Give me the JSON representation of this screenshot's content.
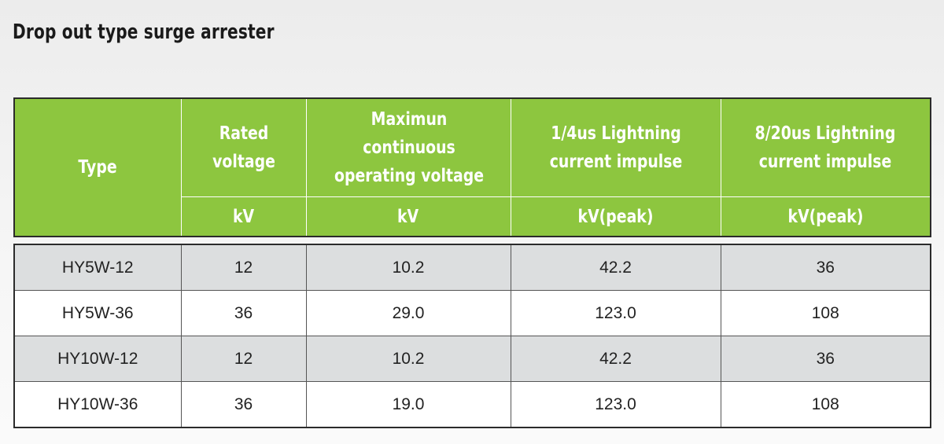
{
  "title": "Drop out type surge arrester",
  "table": {
    "headers": [
      {
        "label": "Type",
        "unit": ""
      },
      {
        "label": "Rated voltage",
        "unit": "kV"
      },
      {
        "label": "Maximun continuous operating voltage",
        "unit": "kV"
      },
      {
        "label": "1/4us Lightning current impulse",
        "unit": "kV(peak)"
      },
      {
        "label": "8/20us Lightning current impulse",
        "unit": "kV(peak)"
      }
    ],
    "rows": [
      [
        "HY5W-12",
        "12",
        "10.2",
        "42.2",
        "36"
      ],
      [
        "HY5W-36",
        "36",
        "29.0",
        "123.0",
        "108"
      ],
      [
        "HY10W-12",
        "12",
        "10.2",
        "42.2",
        "36"
      ],
      [
        "HY10W-36",
        "36",
        "19.0",
        "123.0",
        "108"
      ]
    ]
  },
  "colors": {
    "header_green": "#8dc63f",
    "row_shade": "#dcdedf",
    "row_plain": "#ffffff"
  }
}
